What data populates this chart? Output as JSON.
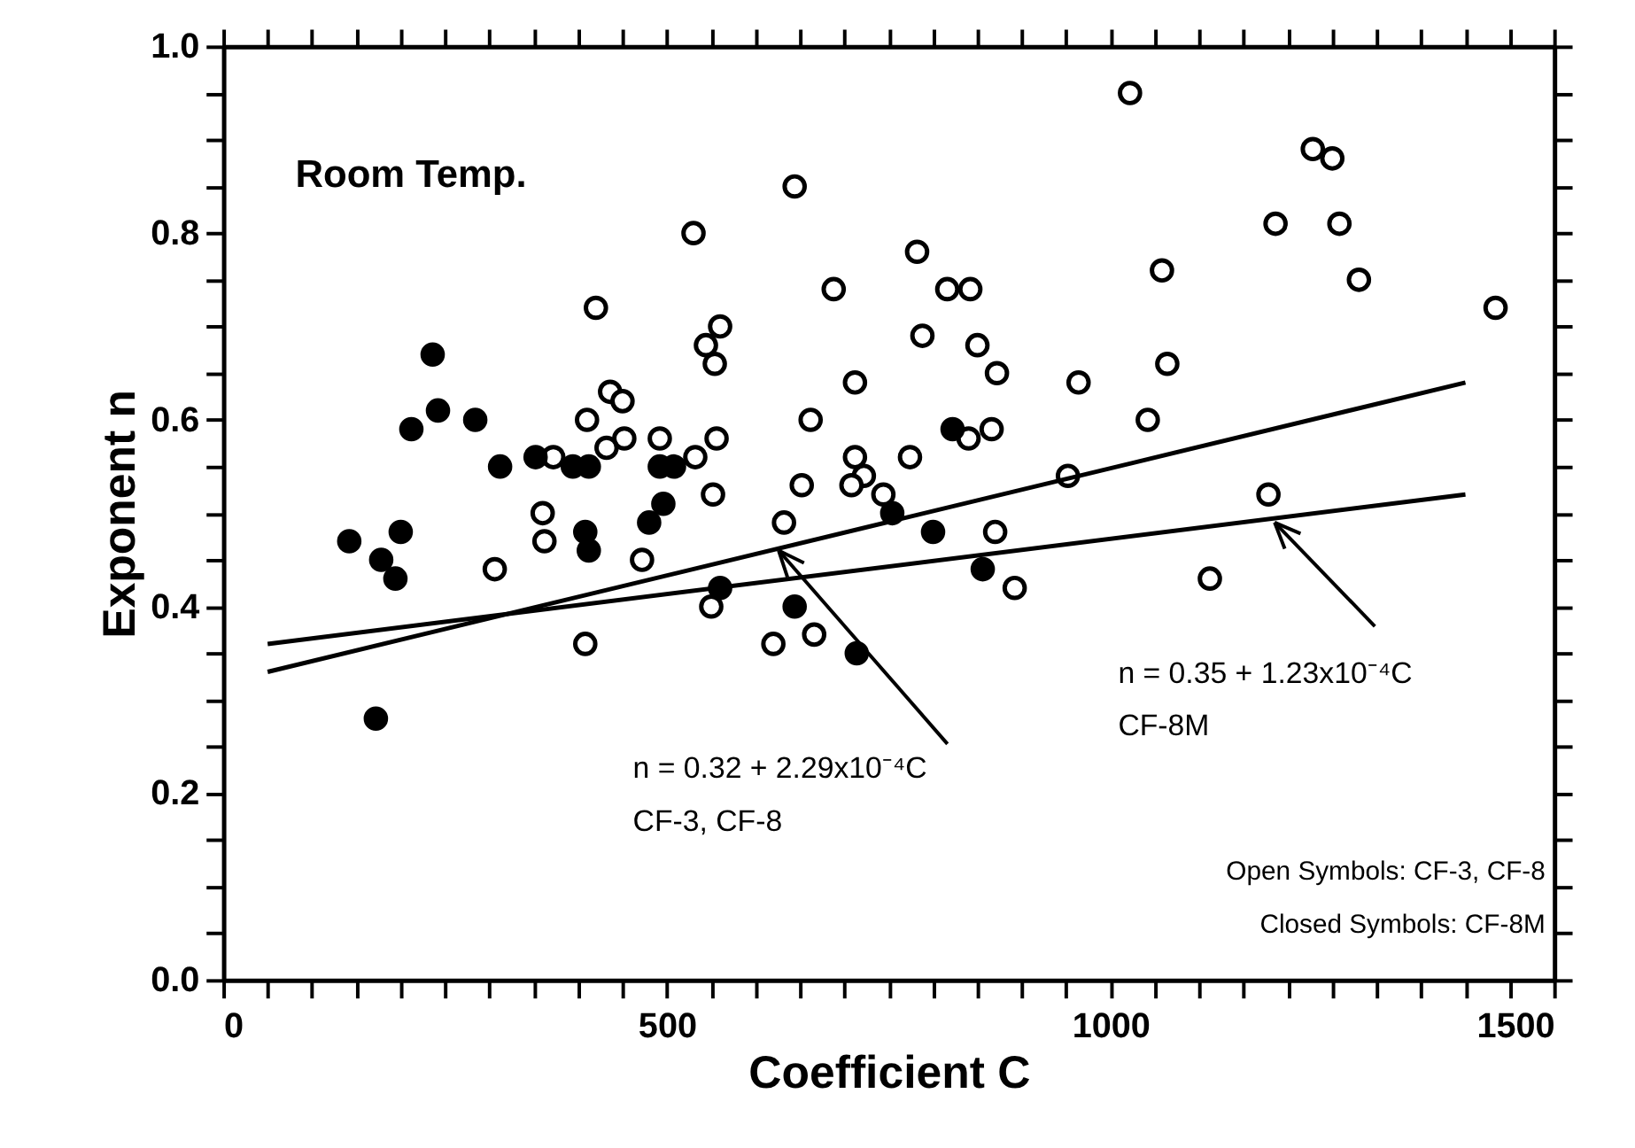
{
  "chart_data": {
    "type": "scatter",
    "xlabel": "Coefficient C",
    "ylabel": "Exponent n",
    "xlim": [
      0,
      1500
    ],
    "ylim": [
      0,
      1
    ],
    "xticks": [
      0,
      {
        "value": 50,
        "label": null
      },
      {
        "value": 100,
        "label": null
      },
      {
        "value": 150,
        "label": null
      },
      {
        "value": 200,
        "label": null
      },
      {
        "value": 250,
        "label": null
      },
      {
        "value": 300,
        "label": null
      },
      {
        "value": 350,
        "label": null
      },
      {
        "value": 400,
        "label": null
      },
      {
        "value": 450,
        "label": null
      },
      500,
      {
        "value": 550,
        "label": null
      },
      {
        "value": 600,
        "label": null
      },
      {
        "value": 650,
        "label": null
      },
      {
        "value": 700,
        "label": null
      },
      {
        "value": 750,
        "label": null
      },
      {
        "value": 800,
        "label": null
      },
      {
        "value": 850,
        "label": null
      },
      {
        "value": 900,
        "label": null
      },
      {
        "value": 950,
        "label": null
      },
      1000,
      {
        "value": 1050,
        "label": null
      },
      {
        "value": 1100,
        "label": null
      },
      {
        "value": 1150,
        "label": null
      },
      {
        "value": 1200,
        "label": null
      },
      {
        "value": 1250,
        "label": null
      },
      {
        "value": 1300,
        "label": null
      },
      {
        "value": 1350,
        "label": null
      },
      {
        "value": 1400,
        "label": null
      },
      {
        "value": 1450,
        "label": null
      },
      1500
    ],
    "yticks": [
      {
        "value": 0,
        "label": "0.0"
      },
      {
        "value": 0.05,
        "label": null
      },
      {
        "value": 0.1,
        "label": null
      },
      {
        "value": 0.15,
        "label": null
      },
      0.2,
      {
        "value": 0.25,
        "label": null
      },
      {
        "value": 0.3,
        "label": null
      },
      {
        "value": 0.35,
        "label": null
      },
      0.4,
      {
        "value": 0.45,
        "label": null
      },
      {
        "value": 0.5,
        "label": null
      },
      {
        "value": 0.55,
        "label": null
      },
      0.6,
      {
        "value": 0.65,
        "label": null
      },
      {
        "value": 0.7,
        "label": null
      },
      {
        "value": 0.75,
        "label": null
      },
      0.8,
      {
        "value": 0.85,
        "label": null
      },
      {
        "value": 0.9,
        "label": null
      },
      {
        "value": 0.95,
        "label": null
      },
      {
        "value": 1,
        "label": "1.0"
      }
    ],
    "grid": false,
    "marker": "circle",
    "series": [
      {
        "color": "#ffffff",
        "x": [
          420,
          544,
          560,
          554,
          436,
          450,
          410,
          452,
          432,
          372,
          492,
          532,
          556,
          552,
          360,
          362,
          306,
          472,
          550,
          408,
          644,
          782,
          688,
          816,
          842,
          1058,
          788,
          850,
          712,
          872,
          964,
          1064,
          1042,
          662,
          866,
          840,
          712,
          722,
          708,
          774,
          652,
          744,
          632,
          952,
          870,
          892,
          1112,
          666,
          620,
          530,
          1228,
          1250,
          1186,
          1258,
          1280,
          1434,
          1178,
          1022
        ],
        "values": [
          0.72,
          0.68,
          0.7,
          0.66,
          0.63,
          0.62,
          0.6,
          0.58,
          0.57,
          0.56,
          0.58,
          0.56,
          0.58,
          0.52,
          0.5,
          0.47,
          0.44,
          0.45,
          0.4,
          0.36,
          0.85,
          0.78,
          0.74,
          0.74,
          0.74,
          0.76,
          0.69,
          0.68,
          0.64,
          0.65,
          0.64,
          0.66,
          0.6,
          0.6,
          0.59,
          0.58,
          0.56,
          0.54,
          0.53,
          0.56,
          0.53,
          0.52,
          0.49,
          0.54,
          0.48,
          0.42,
          0.43,
          0.37,
          0.36,
          0.8,
          0.89,
          0.88,
          0.81,
          0.81,
          0.75,
          0.72,
          0.52,
          0.95
        ]
      },
      {
        "color": "#000000",
        "x": [
          236,
          212,
          242,
          284,
          312,
          352,
          394,
          412,
          492,
          508,
          496,
          480,
          408,
          412,
          142,
          200,
          178,
          194,
          172,
          560,
          822,
          754,
          800,
          856,
          644,
          714
        ],
        "values": [
          0.67,
          0.59,
          0.61,
          0.6,
          0.55,
          0.56,
          0.55,
          0.55,
          0.55,
          0.55,
          0.51,
          0.49,
          0.48,
          0.46,
          0.47,
          0.48,
          0.45,
          0.43,
          0.28,
          0.42,
          0.59,
          0.5,
          0.48,
          0.44,
          0.4,
          0.35
        ]
      },
      {
        "type": "line",
        "color": "#000000",
        "marker": "none",
        "line_style": "solid",
        "x": [
          50,
          1400
        ],
        "values": [
          0.33,
          0.64
        ]
      },
      {
        "type": "line",
        "color": "#000000",
        "marker": "none",
        "line_style": "solid",
        "x": [
          50,
          1400
        ],
        "values": [
          0.36,
          0.52
        ]
      }
    ],
    "annotations": [
      "Room Temp.",
      {
        "text": "n = 0.32 + 2.29x10⁻⁴C",
        "x": 626,
        "y": 0.46
      },
      "CF-3,  CF-8",
      {
        "text": "n = 0.35 + 1.23x10⁻⁴C",
        "x": 1185,
        "y": 0.49
      },
      "CF-8M",
      "Open Symbols: CF-3, CF-8",
      "Closed Symbols: CF-8M"
    ]
  }
}
